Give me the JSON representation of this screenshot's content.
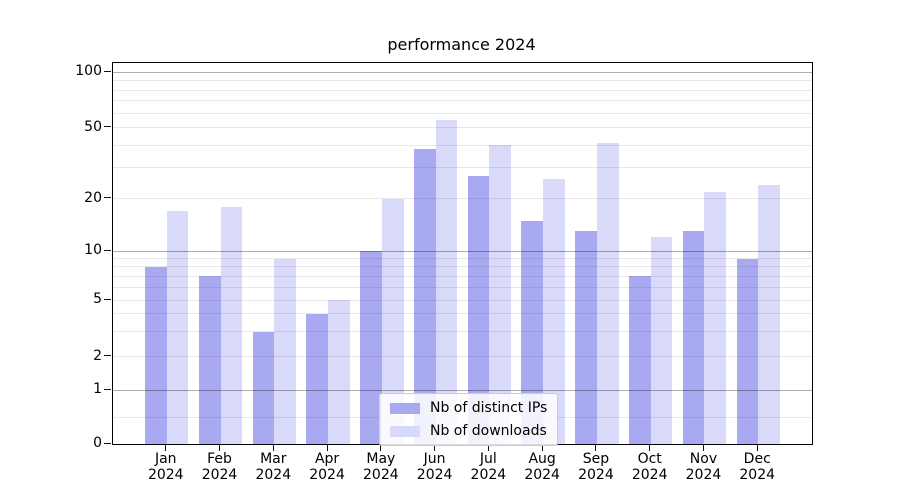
{
  "chart_data": {
    "type": "bar",
    "title": "performance 2024",
    "categories": [
      "Jan 2024",
      "Feb 2024",
      "Mar 2024",
      "Apr 2024",
      "May 2024",
      "Jun 2024",
      "Jul 2024",
      "Aug 2024",
      "Sep 2024",
      "Oct 2024",
      "Nov 2024",
      "Dec 2024"
    ],
    "series": [
      {
        "name": "Nb of distinct IPs",
        "color": "#a9a9f2",
        "values": [
          8,
          7,
          3,
          4,
          10,
          38,
          27,
          15,
          13,
          7,
          13,
          9
        ]
      },
      {
        "name": "Nb of downloads",
        "color": "#d9d9f9",
        "values": [
          17,
          18,
          9,
          5,
          20,
          55,
          40,
          26,
          41,
          12,
          22,
          24
        ]
      }
    ],
    "xlabel": "",
    "ylabel": "",
    "yscale": "symlog",
    "yticks": [
      0,
      1,
      2,
      5,
      10,
      20,
      50,
      100
    ],
    "ylim": [
      0,
      110
    ],
    "grid": "both",
    "legend_position": "lower center"
  }
}
